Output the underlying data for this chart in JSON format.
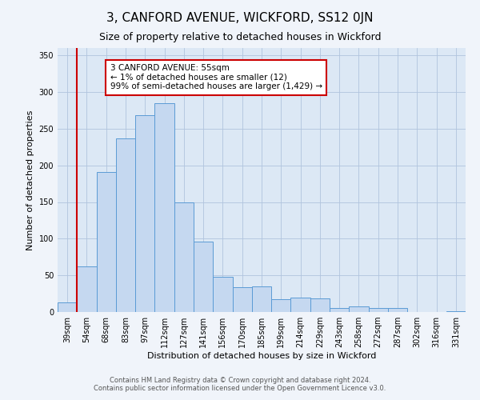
{
  "title": "3, CANFORD AVENUE, WICKFORD, SS12 0JN",
  "subtitle": "Size of property relative to detached houses in Wickford",
  "xlabel": "Distribution of detached houses by size in Wickford",
  "ylabel": "Number of detached properties",
  "bar_labels": [
    "39sqm",
    "54sqm",
    "68sqm",
    "83sqm",
    "97sqm",
    "112sqm",
    "127sqm",
    "141sqm",
    "156sqm",
    "170sqm",
    "185sqm",
    "199sqm",
    "214sqm",
    "229sqm",
    "243sqm",
    "258sqm",
    "272sqm",
    "287sqm",
    "302sqm",
    "316sqm",
    "331sqm"
  ],
  "bar_values": [
    13,
    62,
    191,
    237,
    268,
    285,
    149,
    96,
    48,
    34,
    35,
    18,
    20,
    19,
    5,
    8,
    6,
    6,
    0,
    0,
    1
  ],
  "bar_color": "#c5d8f0",
  "bar_edge_color": "#5b9bd5",
  "vline_x": 1,
  "vline_color": "#cc0000",
  "annotation_text": "3 CANFORD AVENUE: 55sqm\n← 1% of detached houses are smaller (12)\n99% of semi-detached houses are larger (1,429) →",
  "annotation_box_edge_color": "#cc0000",
  "annotation_box_face_color": "#ffffff",
  "ylim": [
    0,
    360
  ],
  "yticks": [
    0,
    50,
    100,
    150,
    200,
    250,
    300,
    350
  ],
  "footer_line1": "Contains HM Land Registry data © Crown copyright and database right 2024.",
  "footer_line2": "Contains public sector information licensed under the Open Government Licence v3.0.",
  "fig_facecolor": "#f0f4fa",
  "plot_bg_color": "#dce8f5",
  "title_fontsize": 11,
  "subtitle_fontsize": 9,
  "axis_label_fontsize": 8,
  "tick_label_fontsize": 7,
  "annotation_fontsize": 7.5,
  "footer_fontsize": 6
}
